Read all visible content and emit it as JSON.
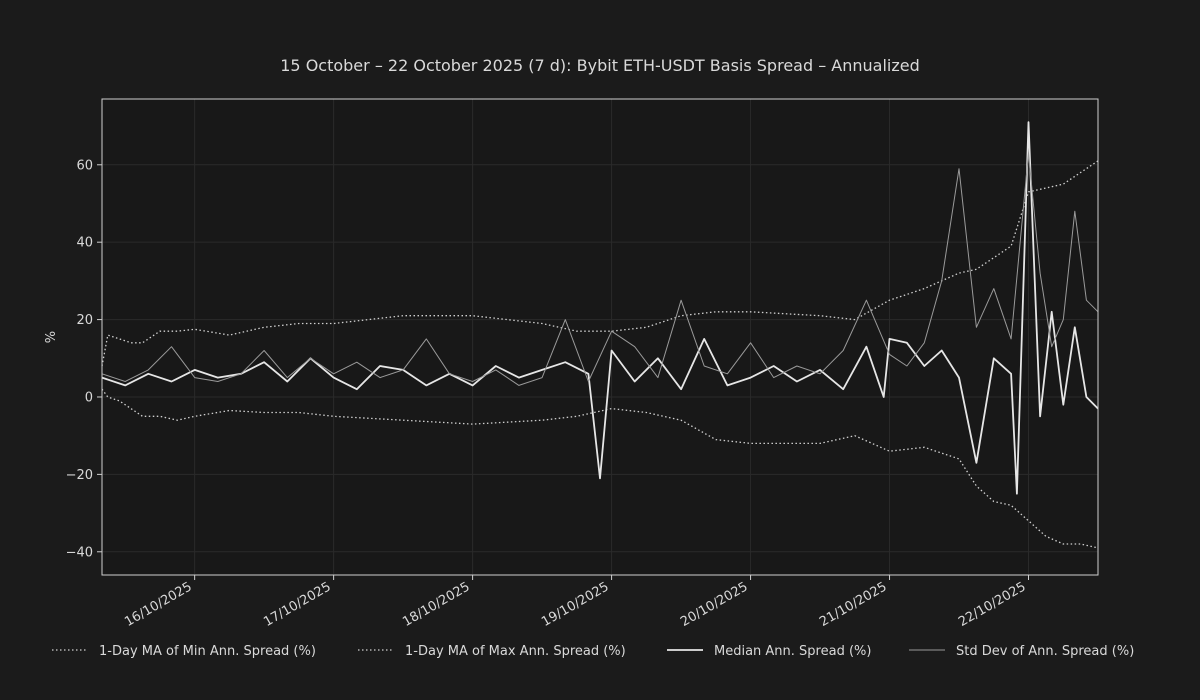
{
  "chart_data": {
    "type": "line",
    "title": "15 October – 22 October 2025 (7 d): Bybit ETH-USDT Basis Spread – Annualized",
    "xlabel": "",
    "ylabel": "%",
    "x_range": [
      "2025-10-15T08:00",
      "2025-10-22T12:00"
    ],
    "ylim": [
      -46,
      77
    ],
    "x_ticks": [
      {
        "date": "2025-10-16",
        "label": "16/10/2025"
      },
      {
        "date": "2025-10-17",
        "label": "17/10/2025"
      },
      {
        "date": "2025-10-18",
        "label": "18/10/2025"
      },
      {
        "date": "2025-10-19",
        "label": "19/10/2025"
      },
      {
        "date": "2025-10-20",
        "label": "20/10/2025"
      },
      {
        "date": "2025-10-21",
        "label": "21/10/2025"
      },
      {
        "date": "2025-10-22",
        "label": "22/10/2025"
      }
    ],
    "y_ticks": [
      -40,
      -20,
      0,
      20,
      40,
      60
    ],
    "y_tick_labels": [
      "−40",
      "−20",
      "0",
      "20",
      "40",
      "60"
    ],
    "grid": true,
    "legend_position": "bottom",
    "colors": {
      "background": "#1b1b1b",
      "plot_background": "#181818",
      "min_ma": "#d0d0d0",
      "max_ma": "#d0d0d0",
      "median": "#e6e6e6",
      "std": "#9a9a9a"
    },
    "series": [
      {
        "name": "1-Day MA of Min Ann. Spread (%)",
        "style": "dotted",
        "x": [
          "2025-10-15T08:00",
          "2025-10-15T09:00",
          "2025-10-15T11:00",
          "2025-10-15T13:00",
          "2025-10-15T15:00",
          "2025-10-15T18:00",
          "2025-10-15T21:00",
          "2025-10-16T00:00",
          "2025-10-16T06:00",
          "2025-10-16T12:00",
          "2025-10-16T18:00",
          "2025-10-17T00:00",
          "2025-10-17T12:00",
          "2025-10-18T00:00",
          "2025-10-18T12:00",
          "2025-10-18T18:00",
          "2025-10-19T00:00",
          "2025-10-19T06:00",
          "2025-10-19T12:00",
          "2025-10-19T18:00",
          "2025-10-20T00:00",
          "2025-10-20T12:00",
          "2025-10-20T18:00",
          "2025-10-21T00:00",
          "2025-10-21T06:00",
          "2025-10-21T12:00",
          "2025-10-21T15:00",
          "2025-10-21T18:00",
          "2025-10-21T21:00",
          "2025-10-22T00:00",
          "2025-10-22T03:00",
          "2025-10-22T06:00",
          "2025-10-22T09:00",
          "2025-10-22T12:00"
        ],
        "values": [
          2,
          0,
          -1,
          -3,
          -5,
          -5,
          -6,
          -5,
          -3.5,
          -4,
          -4,
          -5,
          -6,
          -7,
          -6,
          -5,
          -3,
          -4,
          -6,
          -11,
          -12,
          -12,
          -10,
          -14,
          -13,
          -16,
          -23,
          -27,
          -28,
          -32,
          -36,
          -38,
          -38,
          -39
        ]
      },
      {
        "name": "1-Day MA of Max Ann. Spread (%)",
        "style": "dotted",
        "x": [
          "2025-10-15T08:00",
          "2025-10-15T09:00",
          "2025-10-15T11:00",
          "2025-10-15T13:00",
          "2025-10-15T15:00",
          "2025-10-15T18:00",
          "2025-10-15T21:00",
          "2025-10-16T00:00",
          "2025-10-16T06:00",
          "2025-10-16T12:00",
          "2025-10-16T18:00",
          "2025-10-17T00:00",
          "2025-10-17T12:00",
          "2025-10-18T00:00",
          "2025-10-18T12:00",
          "2025-10-18T18:00",
          "2025-10-19T00:00",
          "2025-10-19T06:00",
          "2025-10-19T12:00",
          "2025-10-19T18:00",
          "2025-10-20T00:00",
          "2025-10-20T12:00",
          "2025-10-20T18:00",
          "2025-10-21T00:00",
          "2025-10-21T06:00",
          "2025-10-21T12:00",
          "2025-10-21T15:00",
          "2025-10-21T18:00",
          "2025-10-21T21:00",
          "2025-10-22T00:00",
          "2025-10-22T03:00",
          "2025-10-22T06:00",
          "2025-10-22T09:00",
          "2025-10-22T12:00"
        ],
        "values": [
          8,
          16,
          15,
          14,
          14,
          17,
          17,
          17.5,
          16,
          18,
          19,
          19,
          21,
          21,
          19,
          17,
          17,
          18,
          21,
          22,
          22,
          21,
          20,
          25,
          28,
          32,
          33,
          36,
          39,
          53,
          54,
          55,
          58,
          61
        ]
      },
      {
        "name": "Median Ann. Spread (%)",
        "style": "solid",
        "x": [
          "2025-10-15T08:00",
          "2025-10-15T12:00",
          "2025-10-15T16:00",
          "2025-10-15T20:00",
          "2025-10-16T00:00",
          "2025-10-16T04:00",
          "2025-10-16T08:00",
          "2025-10-16T12:00",
          "2025-10-16T16:00",
          "2025-10-16T20:00",
          "2025-10-17T00:00",
          "2025-10-17T04:00",
          "2025-10-17T08:00",
          "2025-10-17T12:00",
          "2025-10-17T16:00",
          "2025-10-17T20:00",
          "2025-10-18T00:00",
          "2025-10-18T04:00",
          "2025-10-18T08:00",
          "2025-10-18T12:00",
          "2025-10-18T16:00",
          "2025-10-18T20:00",
          "2025-10-18T22:00",
          "2025-10-19T00:00",
          "2025-10-19T04:00",
          "2025-10-19T08:00",
          "2025-10-19T12:00",
          "2025-10-19T16:00",
          "2025-10-19T20:00",
          "2025-10-20T00:00",
          "2025-10-20T04:00",
          "2025-10-20T08:00",
          "2025-10-20T12:00",
          "2025-10-20T16:00",
          "2025-10-20T20:00",
          "2025-10-20T23:00",
          "2025-10-21T00:00",
          "2025-10-21T03:00",
          "2025-10-21T06:00",
          "2025-10-21T09:00",
          "2025-10-21T12:00",
          "2025-10-21T15:00",
          "2025-10-21T18:00",
          "2025-10-21T21:00",
          "2025-10-21T22:00",
          "2025-10-22T00:00",
          "2025-10-22T02:00",
          "2025-10-22T04:00",
          "2025-10-22T06:00",
          "2025-10-22T08:00",
          "2025-10-22T10:00",
          "2025-10-22T12:00"
        ],
        "values": [
          5,
          3,
          6,
          4,
          7,
          5,
          6,
          9,
          4,
          10,
          5,
          2,
          8,
          7,
          3,
          6,
          3,
          8,
          5,
          7,
          9,
          6,
          -21,
          12,
          4,
          10,
          2,
          15,
          3,
          5,
          8,
          4,
          7,
          2,
          13,
          0,
          15,
          14,
          8,
          12,
          5,
          -17,
          10,
          6,
          -25,
          71,
          -5,
          22,
          -2,
          18,
          0,
          -3
        ]
      },
      {
        "name": "Std Dev of Ann. Spread (%)",
        "style": "solid",
        "x": [
          "2025-10-15T08:00",
          "2025-10-15T12:00",
          "2025-10-15T16:00",
          "2025-10-15T20:00",
          "2025-10-16T00:00",
          "2025-10-16T04:00",
          "2025-10-16T08:00",
          "2025-10-16T12:00",
          "2025-10-16T16:00",
          "2025-10-16T20:00",
          "2025-10-17T00:00",
          "2025-10-17T04:00",
          "2025-10-17T08:00",
          "2025-10-17T12:00",
          "2025-10-17T16:00",
          "2025-10-17T20:00",
          "2025-10-18T00:00",
          "2025-10-18T04:00",
          "2025-10-18T08:00",
          "2025-10-18T12:00",
          "2025-10-18T16:00",
          "2025-10-18T20:00",
          "2025-10-19T00:00",
          "2025-10-19T04:00",
          "2025-10-19T08:00",
          "2025-10-19T12:00",
          "2025-10-19T16:00",
          "2025-10-19T20:00",
          "2025-10-20T00:00",
          "2025-10-20T04:00",
          "2025-10-20T08:00",
          "2025-10-20T12:00",
          "2025-10-20T16:00",
          "2025-10-20T20:00",
          "2025-10-21T00:00",
          "2025-10-21T03:00",
          "2025-10-21T06:00",
          "2025-10-21T09:00",
          "2025-10-21T12:00",
          "2025-10-21T15:00",
          "2025-10-21T18:00",
          "2025-10-21T21:00",
          "2025-10-22T00:00",
          "2025-10-22T02:00",
          "2025-10-22T04:00",
          "2025-10-22T06:00",
          "2025-10-22T08:00",
          "2025-10-22T10:00",
          "2025-10-22T12:00"
        ],
        "values": [
          6,
          4,
          7,
          13,
          5,
          4,
          6,
          12,
          5,
          10,
          6,
          9,
          5,
          7,
          15,
          6,
          4,
          7,
          3,
          5,
          20,
          4,
          17,
          13,
          5,
          25,
          8,
          6,
          14,
          5,
          8,
          6,
          12,
          25,
          11,
          8,
          14,
          30,
          59,
          18,
          28,
          15,
          63,
          32,
          13,
          20,
          48,
          25,
          22
        ]
      }
    ]
  },
  "legend": [
    {
      "label": "1-Day MA of Min Ann. Spread (%)",
      "style": "dotted"
    },
    {
      "label": "1-Day MA of Max Ann. Spread (%)",
      "style": "dotted"
    },
    {
      "label": "Median Ann. Spread (%)",
      "style": "solid"
    },
    {
      "label": "Std Dev of Ann. Spread (%)",
      "style": "thin"
    }
  ]
}
